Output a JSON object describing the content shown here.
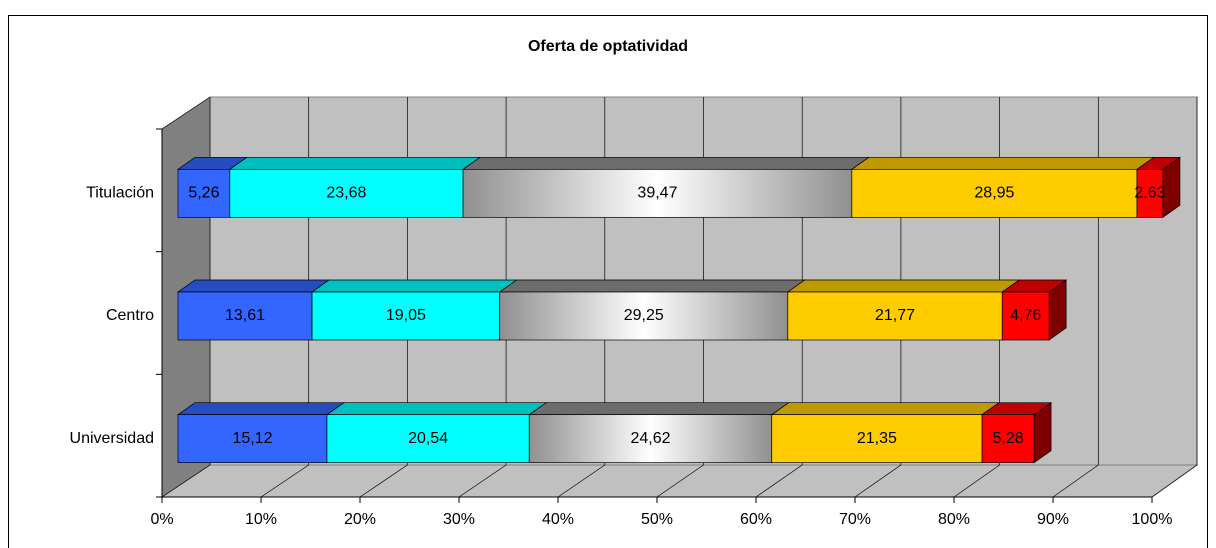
{
  "chart_data": {
    "type": "bar3d_stacked_horizontal",
    "title": "Oferta de optatividad",
    "categories": [
      "Titulación",
      "Centro",
      "Universidad"
    ],
    "series": [
      {
        "color": "#3366ff",
        "values": [
          5.26,
          13.61,
          15.12
        ],
        "value_labels": [
          "5,26",
          "13,61",
          "15,12"
        ]
      },
      {
        "color": "#00ffff",
        "values": [
          23.68,
          19.05,
          20.54
        ],
        "value_labels": [
          "23,68",
          "19,05",
          "20,54"
        ]
      },
      {
        "color": "#909090",
        "gradient": true,
        "values": [
          39.47,
          29.25,
          24.62
        ],
        "value_labels": [
          "39,47",
          "29,25",
          "24,62"
        ]
      },
      {
        "color": "#ffcc00",
        "values": [
          28.95,
          21.77,
          21.35
        ],
        "value_labels": [
          "28,95",
          "21,77",
          "21,35"
        ]
      },
      {
        "color": "#ff0000",
        "values": [
          2.63,
          4.76,
          5.28
        ],
        "value_labels": [
          "2,63",
          "4,76",
          "5,28"
        ]
      }
    ],
    "xlim": [
      0,
      100
    ],
    "xticks": [
      {
        "value": 0,
        "label": "0%"
      },
      {
        "value": 10,
        "label": "10%"
      },
      {
        "value": 20,
        "label": "20%"
      },
      {
        "value": 30,
        "label": "30%"
      },
      {
        "value": 40,
        "label": "40%"
      },
      {
        "value": 50,
        "label": "50%"
      },
      {
        "value": 60,
        "label": "60%"
      },
      {
        "value": 70,
        "label": "70%"
      },
      {
        "value": 80,
        "label": "80%"
      },
      {
        "value": 90,
        "label": "90%"
      },
      {
        "value": 100,
        "label": "100%"
      }
    ],
    "grid": true
  }
}
